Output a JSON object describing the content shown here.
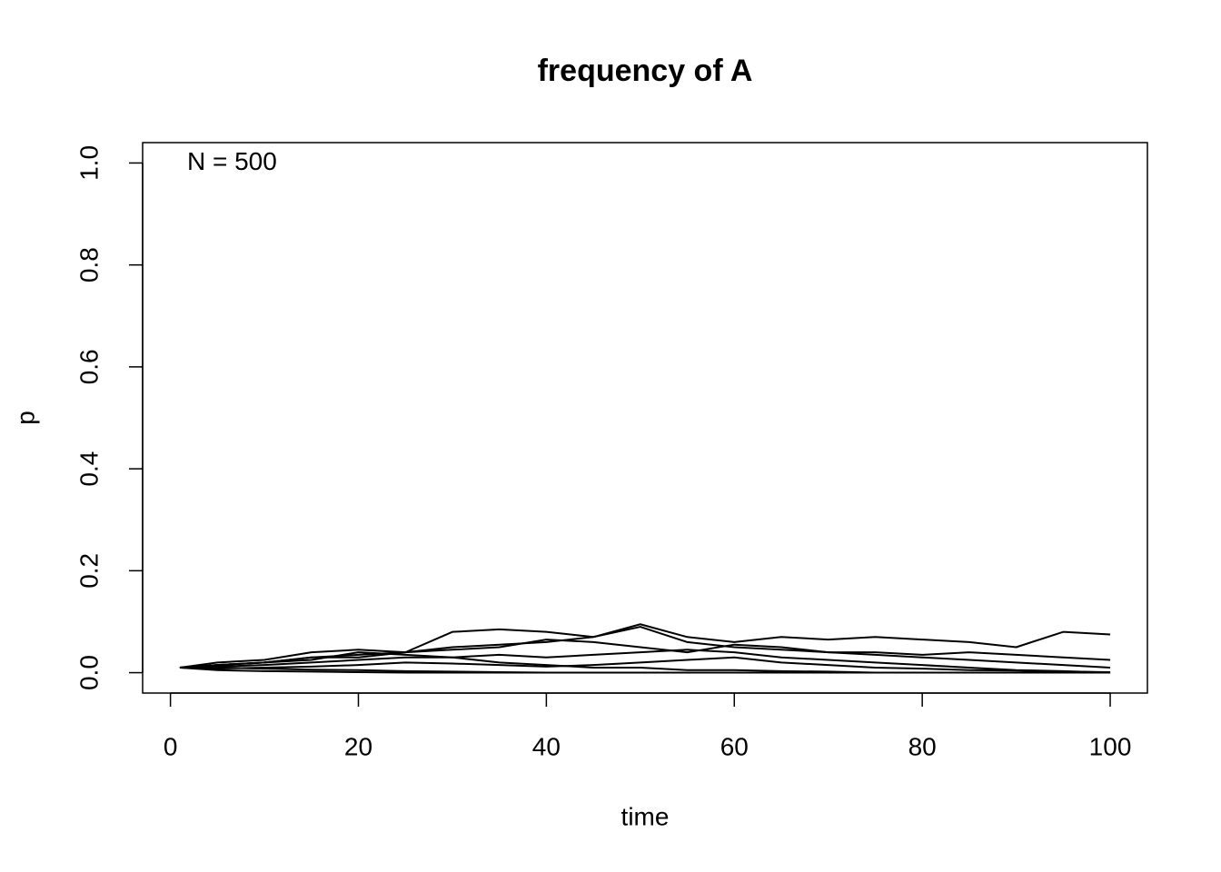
{
  "chart_data": {
    "type": "line",
    "title": "frequency of A",
    "x_label": "time",
    "y_label": "p",
    "annotation": "N = 500",
    "color": "#000000",
    "grid": false,
    "x": [
      1,
      5,
      10,
      15,
      20,
      25,
      30,
      35,
      40,
      45,
      50,
      55,
      60,
      65,
      70,
      75,
      80,
      85,
      90,
      95,
      100
    ],
    "series": [
      {
        "values": [
          0.01,
          0.015,
          0.02,
          0.03,
          0.035,
          0.04,
          0.08,
          0.085,
          0.08,
          0.07,
          0.095,
          0.07,
          0.06,
          0.07,
          0.065,
          0.07,
          0.065,
          0.06,
          0.05,
          0.08,
          0.075
        ]
      },
      {
        "values": [
          0.01,
          0.02,
          0.025,
          0.04,
          0.045,
          0.04,
          0.05,
          0.055,
          0.06,
          0.07,
          0.09,
          0.06,
          0.05,
          0.045,
          0.04,
          0.035,
          0.03,
          0.025,
          0.02,
          0.015,
          0.01
        ]
      },
      {
        "values": [
          0.01,
          0.015,
          0.02,
          0.03,
          0.03,
          0.04,
          0.045,
          0.05,
          0.065,
          0.06,
          0.05,
          0.04,
          0.055,
          0.05,
          0.04,
          0.04,
          0.035,
          0.04,
          0.035,
          0.03,
          0.025
        ]
      },
      {
        "values": [
          0.01,
          0.012,
          0.015,
          0.02,
          0.025,
          0.03,
          0.03,
          0.035,
          0.03,
          0.035,
          0.04,
          0.045,
          0.04,
          0.03,
          0.025,
          0.02,
          0.015,
          0.01,
          0.005,
          0.003,
          0
        ]
      },
      {
        "values": [
          0.01,
          0.01,
          0.008,
          0.006,
          0.005,
          0.003,
          0.002,
          0.001,
          0,
          0,
          0,
          0,
          0,
          0,
          0,
          0,
          0,
          0,
          0,
          0,
          0
        ]
      },
      {
        "values": [
          0.01,
          0.015,
          0.02,
          0.025,
          0.04,
          0.035,
          0.03,
          0.02,
          0.015,
          0.01,
          0.01,
          0.005,
          0.005,
          0.003,
          0.002,
          0,
          0,
          0,
          0,
          0,
          0
        ]
      },
      {
        "values": [
          0.01,
          0.008,
          0.01,
          0.012,
          0.015,
          0.02,
          0.018,
          0.015,
          0.012,
          0.015,
          0.02,
          0.025,
          0.03,
          0.02,
          0.015,
          0.01,
          0.008,
          0.005,
          0.004,
          0.002,
          0.001
        ]
      },
      {
        "values": [
          0.01,
          0.005,
          0.003,
          0.002,
          0.001,
          0,
          0,
          0,
          0,
          0,
          0,
          0,
          0,
          0,
          0,
          0,
          0,
          0,
          0,
          0,
          0
        ]
      }
    ],
    "xlim": [
      -2.96,
      103.96
    ],
    "xticks": [
      0,
      20,
      40,
      60,
      80,
      100
    ],
    "ylim": [
      -0.04,
      1.04
    ],
    "yticks": [
      {
        "value": 0,
        "label": "0.0"
      },
      0.2,
      0.4,
      0.6,
      0.8,
      {
        "value": 1,
        "label": "1.0"
      }
    ]
  }
}
